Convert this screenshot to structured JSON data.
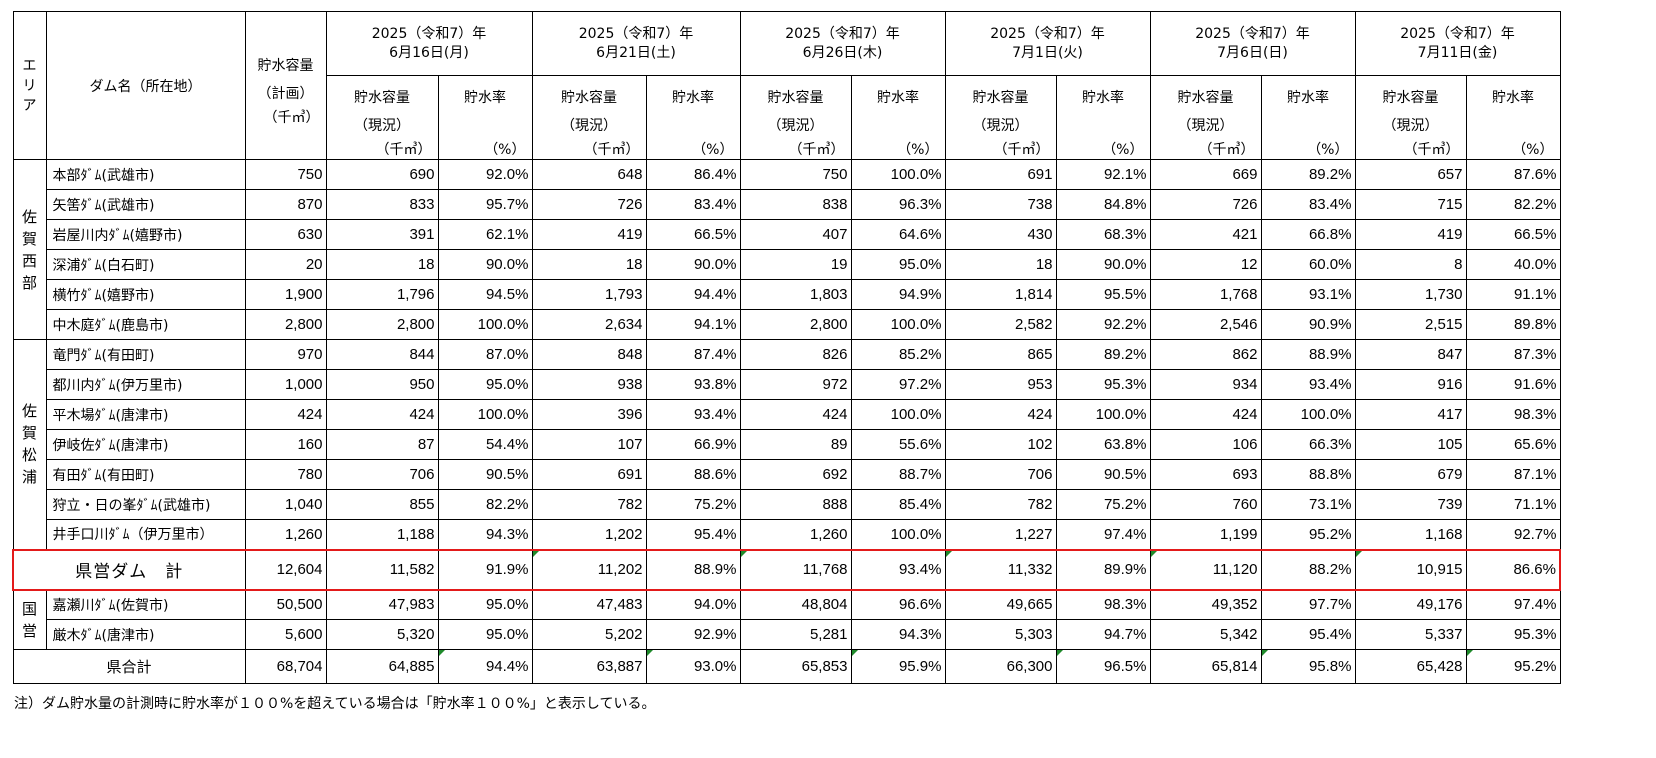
{
  "header": {
    "area_label": "エリア",
    "dam_label": "ダム名（所在地）",
    "plan": {
      "line1": "貯水容量",
      "line2": "（計画）",
      "unit": "（千㎥）"
    },
    "current": {
      "line1": "貯水容量",
      "line2": "（現況）",
      "unit": "（千㎥）"
    },
    "rate": {
      "line1": "貯水率",
      "unit": "（%）"
    },
    "dates": [
      {
        "line1": "2025（令和7）年",
        "line2": "6月16日(月)"
      },
      {
        "line1": "2025（令和7）年",
        "line2": "6月21日(土)"
      },
      {
        "line1": "2025（令和7）年",
        "line2": "6月26日(木)"
      },
      {
        "line1": "2025（令和7）年",
        "line2": "7月1日(火)"
      },
      {
        "line1": "2025（令和7）年",
        "line2": "7月6日(日)"
      },
      {
        "line1": "2025（令和7）年",
        "line2": "7月11日(金)"
      }
    ]
  },
  "areas": [
    {
      "name": "佐賀西部",
      "rows": 6
    },
    {
      "name": "佐賀松浦",
      "rows": 7
    },
    {
      "name": "国営",
      "rows": 2
    }
  ],
  "rows": [
    {
      "name": "本部ﾀﾞﾑ(武雄市)",
      "plan": "750",
      "values": [
        [
          "690",
          "92.0%"
        ],
        [
          "648",
          "86.4%"
        ],
        [
          "750",
          "100.0%"
        ],
        [
          "691",
          "92.1%"
        ],
        [
          "669",
          "89.2%"
        ],
        [
          "657",
          "87.6%"
        ]
      ]
    },
    {
      "name": "矢筈ﾀﾞﾑ(武雄市)",
      "plan": "870",
      "values": [
        [
          "833",
          "95.7%"
        ],
        [
          "726",
          "83.4%"
        ],
        [
          "838",
          "96.3%"
        ],
        [
          "738",
          "84.8%"
        ],
        [
          "726",
          "83.4%"
        ],
        [
          "715",
          "82.2%"
        ]
      ]
    },
    {
      "name": "岩屋川内ﾀﾞﾑ(嬉野市)",
      "plan": "630",
      "values": [
        [
          "391",
          "62.1%"
        ],
        [
          "419",
          "66.5%"
        ],
        [
          "407",
          "64.6%"
        ],
        [
          "430",
          "68.3%"
        ],
        [
          "421",
          "66.8%"
        ],
        [
          "419",
          "66.5%"
        ]
      ]
    },
    {
      "name": "深浦ﾀﾞﾑ(白石町)",
      "plan": "20",
      "values": [
        [
          "18",
          "90.0%"
        ],
        [
          "18",
          "90.0%"
        ],
        [
          "19",
          "95.0%"
        ],
        [
          "18",
          "90.0%"
        ],
        [
          "12",
          "60.0%"
        ],
        [
          "8",
          "40.0%"
        ]
      ]
    },
    {
      "name": "横竹ﾀﾞﾑ(嬉野市)",
      "plan": "1,900",
      "values": [
        [
          "1,796",
          "94.5%"
        ],
        [
          "1,793",
          "94.4%"
        ],
        [
          "1,803",
          "94.9%"
        ],
        [
          "1,814",
          "95.5%"
        ],
        [
          "1,768",
          "93.1%"
        ],
        [
          "1,730",
          "91.1%"
        ]
      ]
    },
    {
      "name": "中木庭ﾀﾞﾑ(鹿島市)",
      "plan": "2,800",
      "values": [
        [
          "2,800",
          "100.0%"
        ],
        [
          "2,634",
          "94.1%"
        ],
        [
          "2,800",
          "100.0%"
        ],
        [
          "2,582",
          "92.2%"
        ],
        [
          "2,546",
          "90.9%"
        ],
        [
          "2,515",
          "89.8%"
        ]
      ]
    },
    {
      "name": "竜門ﾀﾞﾑ(有田町)",
      "plan": "970",
      "values": [
        [
          "844",
          "87.0%"
        ],
        [
          "848",
          "87.4%"
        ],
        [
          "826",
          "85.2%"
        ],
        [
          "865",
          "89.2%"
        ],
        [
          "862",
          "88.9%"
        ],
        [
          "847",
          "87.3%"
        ]
      ]
    },
    {
      "name": "都川内ﾀﾞﾑ(伊万里市)",
      "plan": "1,000",
      "values": [
        [
          "950",
          "95.0%"
        ],
        [
          "938",
          "93.8%"
        ],
        [
          "972",
          "97.2%"
        ],
        [
          "953",
          "95.3%"
        ],
        [
          "934",
          "93.4%"
        ],
        [
          "916",
          "91.6%"
        ]
      ]
    },
    {
      "name": "平木場ﾀﾞﾑ(唐津市)",
      "plan": "424",
      "values": [
        [
          "424",
          "100.0%"
        ],
        [
          "396",
          "93.4%"
        ],
        [
          "424",
          "100.0%"
        ],
        [
          "424",
          "100.0%"
        ],
        [
          "424",
          "100.0%"
        ],
        [
          "417",
          "98.3%"
        ]
      ]
    },
    {
      "name": "伊岐佐ﾀﾞﾑ(唐津市)",
      "plan": "160",
      "values": [
        [
          "87",
          "54.4%"
        ],
        [
          "107",
          "66.9%"
        ],
        [
          "89",
          "55.6%"
        ],
        [
          "102",
          "63.8%"
        ],
        [
          "106",
          "66.3%"
        ],
        [
          "105",
          "65.6%"
        ]
      ]
    },
    {
      "name": "有田ﾀﾞﾑ(有田町)",
      "plan": "780",
      "values": [
        [
          "706",
          "90.5%"
        ],
        [
          "691",
          "88.6%"
        ],
        [
          "692",
          "88.7%"
        ],
        [
          "706",
          "90.5%"
        ],
        [
          "693",
          "88.8%"
        ],
        [
          "679",
          "87.1%"
        ]
      ]
    },
    {
      "name": "狩立・日の峯ﾀﾞﾑ(武雄市)",
      "plan": "1,040",
      "values": [
        [
          "855",
          "82.2%"
        ],
        [
          "782",
          "75.2%"
        ],
        [
          "888",
          "85.4%"
        ],
        [
          "782",
          "75.2%"
        ],
        [
          "760",
          "73.1%"
        ],
        [
          "739",
          "71.1%"
        ]
      ]
    },
    {
      "name": "井手口川ﾀﾞﾑ（伊万里市）",
      "plan": "1,260",
      "values": [
        [
          "1,188",
          "94.3%"
        ],
        [
          "1,202",
          "95.4%"
        ],
        [
          "1,260",
          "100.0%"
        ],
        [
          "1,227",
          "97.4%"
        ],
        [
          "1,199",
          "95.2%"
        ],
        [
          "1,168",
          "92.7%"
        ]
      ]
    }
  ],
  "prefectural_total": {
    "label": "県営ダム　計",
    "plan": "12,604",
    "values": [
      [
        "11,582",
        "91.9%"
      ],
      [
        "11,202",
        "88.9%"
      ],
      [
        "11,768",
        "93.4%"
      ],
      [
        "11,332",
        "89.9%"
      ],
      [
        "11,120",
        "88.2%"
      ],
      [
        "10,915",
        "86.6%"
      ]
    ]
  },
  "national_rows": [
    {
      "name": "嘉瀬川ﾀﾞﾑ(佐賀市)",
      "plan": "50,500",
      "values": [
        [
          "47,983",
          "95.0%"
        ],
        [
          "47,483",
          "94.0%"
        ],
        [
          "48,804",
          "96.6%"
        ],
        [
          "49,665",
          "98.3%"
        ],
        [
          "49,352",
          "97.7%"
        ],
        [
          "49,176",
          "97.4%"
        ]
      ]
    },
    {
      "name": "厳木ﾀﾞﾑ(唐津市)",
      "plan": "5,600",
      "values": [
        [
          "5,320",
          "95.0%"
        ],
        [
          "5,202",
          "92.9%"
        ],
        [
          "5,281",
          "94.3%"
        ],
        [
          "5,303",
          "94.7%"
        ],
        [
          "5,342",
          "95.4%"
        ],
        [
          "5,337",
          "95.3%"
        ]
      ]
    }
  ],
  "grand_total": {
    "label": "県合計",
    "plan": "68,704",
    "values": [
      [
        "64,885",
        "94.4%"
      ],
      [
        "63,887",
        "93.0%"
      ],
      [
        "65,853",
        "95.9%"
      ],
      [
        "66,300",
        "96.5%"
      ],
      [
        "65,814",
        "95.8%"
      ],
      [
        "65,428",
        "95.2%"
      ]
    ]
  },
  "note": "注）ダム貯水量の計測時に貯水率が１００%を超えている場合は「貯水率１００%」と表示している。",
  "colors": {
    "highlight_border": "#e31a1a",
    "cell_marker": "#1f8a2b"
  }
}
